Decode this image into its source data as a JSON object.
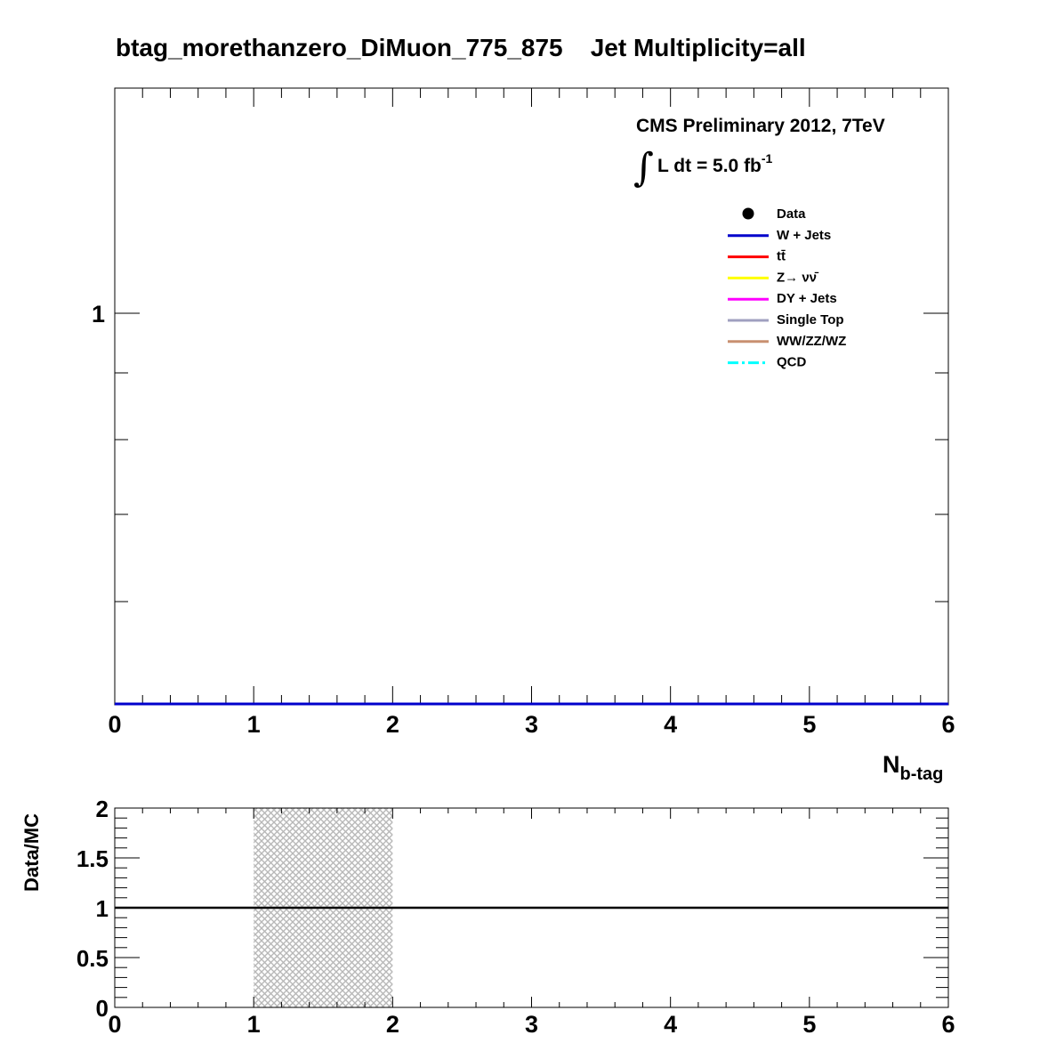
{
  "title": "btag_morethanzero_DiMuon_775_875    Jet Multiplicity=all",
  "cms_label": "CMS Preliminary 2012, 7TeV",
  "lumi_integral_symbol": "∫",
  "lumi_text": "L dt = 5.0 fb",
  "lumi_exponent": "-1",
  "colors": {
    "data": "#000000",
    "w_jets": "#0000cc",
    "ttbar": "#ff0000",
    "z_nunu": "#ffff00",
    "dy_jets": "#ff00ff",
    "single_top": "#a0a0c0",
    "diboson": "#c89070",
    "qcd": "#00ffff",
    "uncertainty_band": "#b8b8b8"
  },
  "chart_data": [
    {
      "type": "line",
      "panel": "main",
      "title": "btag_morethanzero_DiMuon_775_875    Jet Multiplicity=all",
      "xlabel": "N",
      "xlabel_sub": "b-tag",
      "ylabel": "",
      "xlim": [
        0,
        6
      ],
      "x_ticks": [
        "0",
        "1",
        "2",
        "3",
        "4",
        "5",
        "6"
      ],
      "y_scale": "log",
      "y_ticks": [
        "1"
      ],
      "legend_position": "top-right",
      "legend": [
        {
          "label": "Data",
          "style": "marker",
          "color": "#000000"
        },
        {
          "label": "W + Jets",
          "style": "line",
          "color": "#0000cc"
        },
        {
          "label": "tt̄",
          "style": "line",
          "color": "#ff0000"
        },
        {
          "label": "Z→ νν̄",
          "style": "line",
          "color": "#ffff00"
        },
        {
          "label": "DY + Jets",
          "style": "line",
          "color": "#ff00ff"
        },
        {
          "label": "Single Top",
          "style": "line",
          "color": "#a0a0c0"
        },
        {
          "label": "WW/ZZ/WZ",
          "style": "line",
          "color": "#c89070"
        },
        {
          "label": "QCD",
          "style": "dashdot",
          "color": "#00ffff"
        }
      ],
      "series": [
        {
          "name": "W + Jets",
          "x": [
            0,
            6
          ],
          "y": [
            0,
            0
          ]
        }
      ]
    },
    {
      "type": "line",
      "panel": "ratio",
      "ylabel": "Data/MC",
      "xlim": [
        0,
        6
      ],
      "ylim": [
        0,
        2
      ],
      "x_ticks": [
        "0",
        "1",
        "2",
        "3",
        "4",
        "5",
        "6"
      ],
      "y_ticks": [
        "0",
        "0.5",
        "1",
        "1.5",
        "2"
      ],
      "reference_line": 1,
      "uncertainty_band": {
        "x_from": 1,
        "x_to": 2,
        "y_from": 0,
        "y_to": 2
      }
    }
  ]
}
